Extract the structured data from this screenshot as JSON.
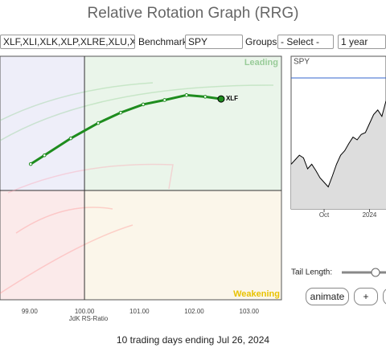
{
  "header": {
    "title": "Relative Rotation Graph (RRG)"
  },
  "controls": {
    "symbols": "XLF,XLI,XLK,XLP,XLRE,XLU,XLV,XL",
    "benchmark_label": "Benchmark:",
    "benchmark": "SPY",
    "groups_label": "Groups:",
    "groups": "- Select -",
    "period": "1 year",
    "tail_label": "Tail Length:",
    "animate": "animate",
    "plus": "+"
  },
  "chart_data": [
    {
      "type": "line",
      "xlabel": "JdK RS-Ratio",
      "annotations": [
        "Leading",
        "Weakening"
      ],
      "x": [
        99.02,
        99.27,
        99.75,
        100.25,
        100.66,
        101.07,
        101.46,
        101.86,
        102.2,
        102.49
      ],
      "series": [
        {
          "name": "XLF",
          "color": "#1e8c1e",
          "values": [
            100.48,
            100.64,
            100.95,
            101.23,
            101.42,
            101.57,
            101.65,
            101.74,
            101.71,
            101.67
          ]
        }
      ],
      "xlim": [
        98.46,
        103.59
      ],
      "ylim": [
        98.0,
        102.45
      ],
      "xticks": [
        {
          "value": 99,
          "label": "99.00"
        },
        {
          "value": 100,
          "label": "100.00"
        },
        {
          "value": 101,
          "label": "101.00"
        },
        {
          "value": 102,
          "label": "102.00"
        },
        {
          "value": 103,
          "label": "103.00"
        }
      ]
    },
    {
      "type": "line",
      "title": "SPY",
      "color": "#000000",
      "values": [
        445,
        450,
        455,
        452,
        440,
        445,
        438,
        430,
        425,
        420,
        432,
        445,
        455,
        460,
        468,
        475,
        472,
        478,
        480,
        490,
        500,
        505,
        498,
        515
      ],
      "xlim": [
        0,
        23
      ],
      "ylim": [
        400,
        560
      ],
      "xticks": [
        {
          "value": 8,
          "label": "Oct"
        },
        {
          "value": 19,
          "label": "2024"
        }
      ]
    }
  ],
  "footer": "10 trading days ending Jul 26, 2024"
}
